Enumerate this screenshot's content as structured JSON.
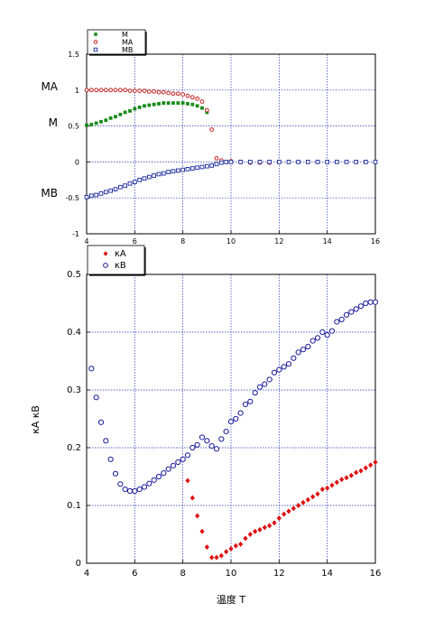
{
  "chart_data": [
    {
      "type": "scatter",
      "xlim": [
        4,
        16
      ],
      "ylim": [
        -1,
        1.5
      ],
      "x_ticks": [
        "4",
        "6",
        "8",
        "10",
        "12",
        "14",
        "16"
      ],
      "y_ticks": [
        "-1",
        "-0.5",
        "0",
        "0.5",
        "1",
        "1.5"
      ],
      "grid": true,
      "legend_position": "top-left",
      "side_labels": [
        "MA",
        "M",
        "MB"
      ],
      "series": [
        {
          "name": "M",
          "color": "#1a8a1a",
          "marker": "filled-square",
          "x": [
            4.0,
            4.2,
            4.4,
            4.6,
            4.8,
            5.0,
            5.2,
            5.4,
            5.6,
            5.8,
            6.0,
            6.2,
            6.4,
            6.6,
            6.8,
            7.0,
            7.2,
            7.4,
            7.6,
            7.8,
            8.0,
            8.2,
            8.4,
            8.6,
            8.8,
            9.0
          ],
          "y": [
            0.51,
            0.52,
            0.54,
            0.56,
            0.58,
            0.61,
            0.63,
            0.66,
            0.69,
            0.71,
            0.74,
            0.76,
            0.78,
            0.79,
            0.8,
            0.81,
            0.82,
            0.82,
            0.82,
            0.82,
            0.82,
            0.81,
            0.8,
            0.78,
            0.75,
            0.69
          ]
        },
        {
          "name": "MA",
          "color": "#c02020",
          "marker": "open-circle",
          "x": [
            4.0,
            4.2,
            4.4,
            4.6,
            4.8,
            5.0,
            5.2,
            5.4,
            5.6,
            5.8,
            6.0,
            6.2,
            6.4,
            6.6,
            6.8,
            7.0,
            7.2,
            7.4,
            7.6,
            7.8,
            8.0,
            8.2,
            8.4,
            8.6,
            8.8,
            9.0,
            9.2,
            9.4,
            9.6,
            10.0,
            10.4,
            10.8,
            11.2,
            11.6,
            12.0
          ],
          "y": [
            1.0,
            1.0,
            1.0,
            1.0,
            1.0,
            1.0,
            1.0,
            1.0,
            1.0,
            0.99,
            0.99,
            0.99,
            0.99,
            0.98,
            0.98,
            0.97,
            0.97,
            0.96,
            0.95,
            0.95,
            0.94,
            0.92,
            0.9,
            0.88,
            0.84,
            0.72,
            0.45,
            0.05,
            0.02,
            0.01,
            0.0,
            -0.01,
            -0.01,
            -0.01,
            0.0
          ]
        },
        {
          "name": "MB",
          "color": "#1a2a9a",
          "marker": "open-square",
          "x": [
            4.0,
            4.2,
            4.4,
            4.6,
            4.8,
            5.0,
            5.2,
            5.4,
            5.6,
            5.8,
            6.0,
            6.2,
            6.4,
            6.6,
            6.8,
            7.0,
            7.2,
            7.4,
            7.6,
            7.8,
            8.0,
            8.2,
            8.4,
            8.6,
            8.8,
            9.0,
            9.2,
            9.4,
            9.6,
            9.8,
            10.0,
            10.4,
            10.8,
            11.2,
            11.6,
            12.0,
            12.4,
            12.8,
            13.2,
            13.6,
            14.0,
            14.4,
            14.8,
            15.2,
            15.6,
            16.0
          ],
          "y": [
            -0.49,
            -0.47,
            -0.46,
            -0.44,
            -0.42,
            -0.4,
            -0.38,
            -0.35,
            -0.33,
            -0.3,
            -0.28,
            -0.25,
            -0.23,
            -0.21,
            -0.19,
            -0.17,
            -0.16,
            -0.14,
            -0.13,
            -0.12,
            -0.11,
            -0.1,
            -0.09,
            -0.08,
            -0.07,
            -0.06,
            -0.05,
            -0.03,
            -0.01,
            0.0,
            0.0,
            0.0,
            0.0,
            0.0,
            0.0,
            0.0,
            0.0,
            0.0,
            0.0,
            0.0,
            0.0,
            0.0,
            0.0,
            0.0,
            0.0,
            0.0
          ]
        }
      ]
    },
    {
      "type": "scatter",
      "xlim": [
        4,
        16
      ],
      "ylim": [
        0,
        0.5
      ],
      "x_ticks": [
        "4",
        "6",
        "8",
        "10",
        "12",
        "14",
        "16"
      ],
      "y_ticks": [
        "0",
        "0.1",
        "0.2",
        "0.3",
        "0.4",
        "0.5"
      ],
      "xlabel": "温度 T",
      "ylabel": "κA κB",
      "grid": true,
      "legend_position": "top-left",
      "series": [
        {
          "name": "κA",
          "color": "#dd1111",
          "marker": "filled-diamond",
          "x": [
            8.2,
            8.4,
            8.6,
            8.8,
            9.0,
            9.2,
            9.4,
            9.6,
            9.8,
            10.0,
            10.2,
            10.4,
            10.6,
            10.8,
            11.0,
            11.2,
            11.4,
            11.6,
            11.8,
            12.0,
            12.2,
            12.4,
            12.6,
            12.8,
            13.0,
            13.2,
            13.4,
            13.6,
            13.8,
            14.0,
            14.2,
            14.4,
            14.6,
            14.8,
            15.0,
            15.2,
            15.4,
            15.6,
            15.8,
            16.0
          ],
          "y": [
            0.143,
            0.113,
            0.082,
            0.055,
            0.028,
            0.01,
            0.01,
            0.013,
            0.02,
            0.025,
            0.03,
            0.033,
            0.043,
            0.05,
            0.055,
            0.058,
            0.062,
            0.065,
            0.07,
            0.078,
            0.085,
            0.09,
            0.095,
            0.1,
            0.105,
            0.11,
            0.115,
            0.12,
            0.128,
            0.13,
            0.135,
            0.14,
            0.145,
            0.148,
            0.152,
            0.157,
            0.16,
            0.165,
            0.17,
            0.175
          ]
        },
        {
          "name": "κB",
          "color": "#1a1a99",
          "marker": "open-circle",
          "x": [
            4.2,
            4.4,
            4.6,
            4.8,
            5.0,
            5.2,
            5.4,
            5.6,
            5.8,
            6.0,
            6.2,
            6.4,
            6.6,
            6.8,
            7.0,
            7.2,
            7.4,
            7.6,
            7.8,
            8.0,
            8.2,
            8.4,
            8.6,
            8.8,
            9.0,
            9.2,
            9.4,
            9.6,
            9.8,
            10.0,
            10.2,
            10.4,
            10.6,
            10.8,
            11.0,
            11.2,
            11.4,
            11.6,
            11.8,
            12.0,
            12.2,
            12.4,
            12.6,
            12.8,
            13.0,
            13.2,
            13.4,
            13.6,
            13.8,
            14.0,
            14.2,
            14.4,
            14.6,
            14.8,
            15.0,
            15.2,
            15.4,
            15.6,
            15.8,
            16.0
          ],
          "y": [
            0.337,
            0.287,
            0.244,
            0.212,
            0.18,
            0.155,
            0.137,
            0.128,
            0.125,
            0.125,
            0.128,
            0.132,
            0.138,
            0.144,
            0.15,
            0.156,
            0.163,
            0.169,
            0.175,
            0.18,
            0.187,
            0.2,
            0.205,
            0.218,
            0.212,
            0.203,
            0.198,
            0.215,
            0.228,
            0.245,
            0.25,
            0.26,
            0.275,
            0.28,
            0.295,
            0.305,
            0.31,
            0.318,
            0.33,
            0.335,
            0.34,
            0.345,
            0.355,
            0.365,
            0.37,
            0.375,
            0.385,
            0.39,
            0.4,
            0.395,
            0.402,
            0.418,
            0.422,
            0.43,
            0.435,
            0.44,
            0.445,
            0.45,
            0.452,
            0.452
          ]
        }
      ]
    }
  ]
}
